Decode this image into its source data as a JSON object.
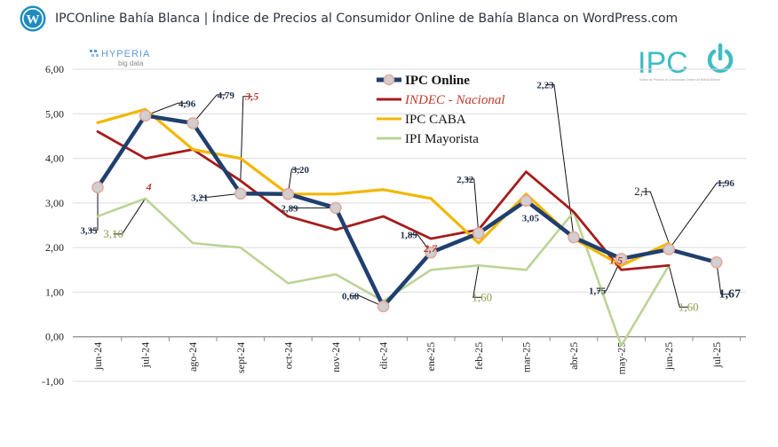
{
  "header": {
    "title": "IPCOnline Bahía Blanca | Índice de Precios al Consumidor Online de Bahía Blanca on WordPress.com",
    "logo_icon": "wordpress-logo-icon"
  },
  "branding": {
    "hyperia_name": "HYPERIA",
    "hyperia_sub": "big data",
    "ipc_logo_text": "IPC",
    "ipc_logo_color": "#3fbcc4",
    "ipc_tagline": "Índice de Precios al Consumidor Online de Bahía Blanca"
  },
  "chart_data": {
    "type": "line",
    "title": "",
    "xlabel": "",
    "ylabel": "",
    "ylim": [
      -1,
      6
    ],
    "yticks": [
      "-1,00",
      "0,00",
      "1,00",
      "2,00",
      "3,00",
      "4,00",
      "5,00",
      "6,00"
    ],
    "ytick_values": [
      -1,
      0,
      1,
      2,
      3,
      4,
      5,
      6
    ],
    "categories": [
      "jun-24",
      "jul-24",
      "ago-24",
      "sept-24",
      "oct-24",
      "nov-24",
      "dic-24",
      "ene-25",
      "feb-25",
      "mar-25",
      "abr-25",
      "may-25",
      "jun-25",
      "jul-25"
    ],
    "series": [
      {
        "name": "IPC Online",
        "color": "#1f3f6e",
        "values": [
          3.35,
          4.96,
          4.79,
          3.21,
          3.2,
          2.89,
          0.68,
          1.89,
          2.32,
          3.05,
          2.23,
          1.75,
          1.96,
          1.67
        ]
      },
      {
        "name": "INDEC - Nacional",
        "color": "#a51c1c",
        "values": [
          4.6,
          4.0,
          4.2,
          3.5,
          2.7,
          2.4,
          2.7,
          2.2,
          2.4,
          3.7,
          2.8,
          1.5,
          1.6,
          null
        ]
      },
      {
        "name": "IPC CABA",
        "color": "#f2b705",
        "values": [
          4.8,
          5.1,
          4.2,
          4.0,
          3.2,
          3.2,
          3.3,
          3.1,
          2.1,
          3.2,
          2.2,
          1.6,
          2.1,
          null
        ]
      },
      {
        "name": "IPI Mayorista",
        "color": "#bcd396",
        "values": [
          2.7,
          3.1,
          2.1,
          2.0,
          1.2,
          1.4,
          0.8,
          1.5,
          1.6,
          1.5,
          2.8,
          -0.2,
          1.6,
          null
        ]
      }
    ],
    "legend_position": "top-center",
    "annotations": [
      {
        "text": "3,35",
        "series": "IPC Online",
        "category": "jun-24"
      },
      {
        "text": "4,96",
        "series": "IPC Online",
        "category": "jul-24"
      },
      {
        "text": "4,79",
        "series": "IPC Online",
        "category": "ago-24"
      },
      {
        "text": "3,21",
        "series": "IPC Online",
        "category": "sept-24"
      },
      {
        "text": "3,20",
        "series": "IPC Online",
        "category": "oct-24"
      },
      {
        "text": "2,89",
        "series": "IPC Online",
        "category": "nov-24"
      },
      {
        "text": "0,68",
        "series": "IPC Online",
        "category": "dic-24"
      },
      {
        "text": "1,89",
        "series": "IPC Online",
        "category": "ene-25"
      },
      {
        "text": "2,32",
        "series": "IPC Online",
        "category": "feb-25"
      },
      {
        "text": "3,05",
        "series": "IPC Online",
        "category": "mar-25"
      },
      {
        "text": "2,23",
        "series": "IPC Online",
        "category": "abr-25"
      },
      {
        "text": "1,75",
        "series": "IPC Online",
        "category": "may-25"
      },
      {
        "text": "1,96",
        "series": "IPC Online",
        "category": "jun-25"
      },
      {
        "text": "1,67",
        "series": "IPC Online",
        "category": "jul-25"
      },
      {
        "text": "4",
        "series": "INDEC - Nacional",
        "category": "jul-24"
      },
      {
        "text": "3,5",
        "series": "INDEC - Nacional",
        "category": "sept-24"
      },
      {
        "text": "2,7",
        "series": "INDEC - Nacional",
        "category": "dic-24"
      },
      {
        "text": "1,5",
        "series": "INDEC - Nacional",
        "category": "may-25"
      },
      {
        "text": "2,1",
        "series": "IPC CABA",
        "category": "jun-25"
      },
      {
        "text": "3,10",
        "series": "IPI Mayorista",
        "category": "jul-24"
      },
      {
        "text": "1,60",
        "series": "IPI Mayorista",
        "category": "feb-25"
      },
      {
        "text": "1,60",
        "series": "IPI Mayorista",
        "category": "jun-25"
      }
    ]
  }
}
